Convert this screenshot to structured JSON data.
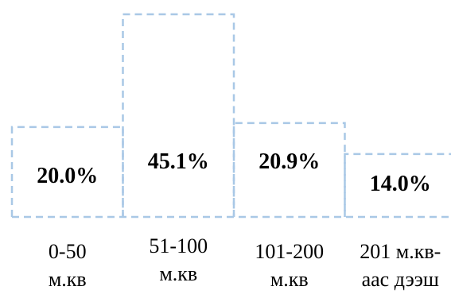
{
  "chart_data": {
    "type": "bar",
    "categories": [
      [
        "0-50",
        "м.кв"
      ],
      [
        "51-100",
        "м.кв"
      ],
      [
        "101-200",
        "м.кв"
      ],
      [
        "201 м.кв-",
        "аас дээш"
      ]
    ],
    "values": [
      20.0,
      45.1,
      20.9,
      14.0
    ],
    "data_labels": [
      "20.0%",
      "45.1%",
      "20.9%",
      "14.0%"
    ],
    "ylim": [
      0,
      45.1
    ],
    "grid": false,
    "legend": "none",
    "bar_style": "dashed-outline",
    "bar_color": "#a9c8e6"
  }
}
